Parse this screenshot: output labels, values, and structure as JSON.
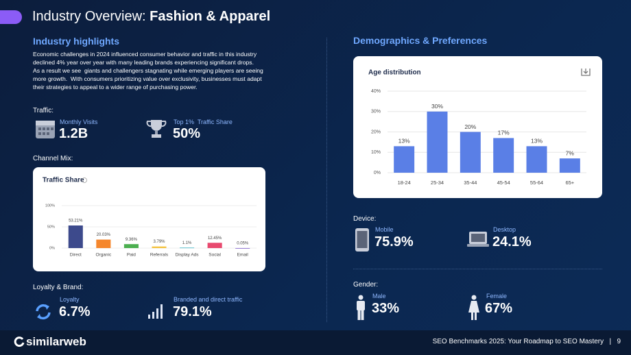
{
  "header": {
    "title_prefix": "Industry Overview: ",
    "title_emphasis": "Fashion & Apparel"
  },
  "highlights": {
    "heading": "Industry highlights",
    "paragraph": [
      "Economic challenges in 2024 influenced consumer behavior and traffic in this industry",
      "declined 4% year over year with many leading brands experiencing significant drops.",
      "As a result we see  giants and challengers stagnating while emerging players are seeing",
      "more growth.  With consumers prioritizing value over exclusivity, businesses must adapt",
      "their strategies to appeal to a wider range of purchasing power."
    ]
  },
  "traffic": {
    "label": "Traffic:",
    "monthly_visits": {
      "label": "Monthly Visits",
      "value": "1.2B"
    },
    "top_share": {
      "label": "Top 1%  Traffic Share",
      "value": "50%"
    }
  },
  "channel_mix": {
    "label": "Channel Mix:"
  },
  "loyalty": {
    "label": "Loyalty & Brand:",
    "loyalty": {
      "label": "Loyalty",
      "value": "6.7%"
    },
    "branded": {
      "label": "Branded and direct traffic",
      "value": "79.1%"
    }
  },
  "demographics": {
    "heading": "Demographics & Preferences"
  },
  "device": {
    "label": "Device:",
    "mobile": {
      "label": "Mobile",
      "value": "75.9%"
    },
    "desktop": {
      "label": "Desktop",
      "value": "24.1%"
    }
  },
  "gender": {
    "label": "Gender:",
    "male": {
      "label": "Male",
      "value": "33%"
    },
    "female": {
      "label": "Female",
      "value": "67%"
    }
  },
  "footer": {
    "brand": "similarweb",
    "text": "SEO Benchmarks 2025: Your Roadmap to SEO Mastery",
    "separator": "|",
    "page": "9"
  },
  "chart_data": [
    {
      "type": "bar",
      "title": "Traffic Share",
      "categories": [
        "Direct",
        "Organic",
        "Paid",
        "Referrals",
        "Display Ads",
        "Social",
        "Email"
      ],
      "values": [
        53.21,
        20.03,
        9.36,
        3.79,
        1.1,
        12.45,
        0.05
      ],
      "value_labels": [
        "53.21%",
        "20.03%",
        "9.36%",
        "3.79%",
        "1.1%",
        "12.45%",
        "0.05%"
      ],
      "colors": [
        "#3d4a8c",
        "#f5872d",
        "#4caf50",
        "#f4c23f",
        "#3cb5c4",
        "#e84a6f",
        "#7b57c9"
      ],
      "ylim": [
        0,
        100
      ],
      "yticks": [
        {
          "value": 0,
          "label": "0%"
        },
        {
          "value": 50,
          "label": "50%"
        },
        {
          "value": 100,
          "label": "100%"
        }
      ],
      "grid": true
    },
    {
      "type": "bar",
      "title": "Age distribution",
      "categories": [
        "18-24",
        "25-34",
        "35-44",
        "45-54",
        "55-64",
        "65+"
      ],
      "values": [
        13,
        30,
        20,
        17,
        13,
        7
      ],
      "value_labels": [
        "13%",
        "30%",
        "20%",
        "17%",
        "13%",
        "7%"
      ],
      "color": "#5a7fe6",
      "ylim": [
        0,
        40
      ],
      "yticks": [
        {
          "value": 0,
          "label": "0%"
        },
        {
          "value": 10,
          "label": "10%"
        },
        {
          "value": 20,
          "label": "20%"
        },
        {
          "value": 30,
          "label": "30%"
        },
        {
          "value": 40,
          "label": "40%"
        }
      ],
      "grid": true
    }
  ]
}
